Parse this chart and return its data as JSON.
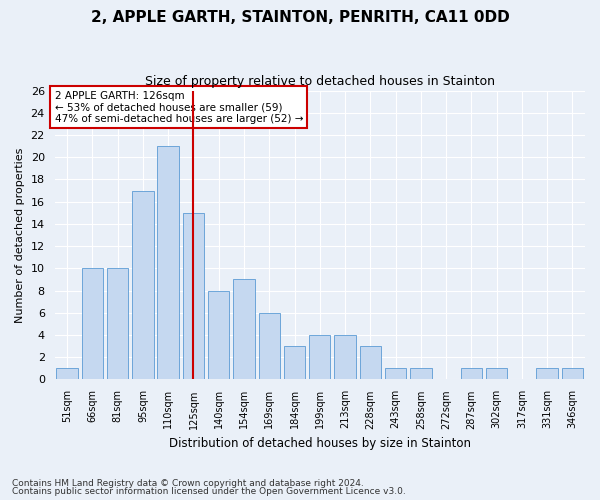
{
  "title1": "2, APPLE GARTH, STAINTON, PENRITH, CA11 0DD",
  "title2": "Size of property relative to detached houses in Stainton",
  "xlabel": "Distribution of detached houses by size in Stainton",
  "ylabel": "Number of detached properties",
  "categories": [
    "51sqm",
    "66sqm",
    "81sqm",
    "95sqm",
    "110sqm",
    "125sqm",
    "140sqm",
    "154sqm",
    "169sqm",
    "184sqm",
    "199sqm",
    "213sqm",
    "228sqm",
    "243sqm",
    "258sqm",
    "272sqm",
    "287sqm",
    "302sqm",
    "317sqm",
    "331sqm",
    "346sqm"
  ],
  "values": [
    1,
    10,
    10,
    17,
    21,
    15,
    8,
    9,
    6,
    3,
    4,
    4,
    3,
    1,
    1,
    0,
    1,
    1,
    0,
    1,
    1
  ],
  "bar_color": "#c5d8f0",
  "bar_edge_color": "#5b9bd5",
  "vline_x": 5,
  "vline_color": "#cc0000",
  "annotation_title": "2 APPLE GARTH: 126sqm",
  "annotation_line2": "← 53% of detached houses are smaller (59)",
  "annotation_line3": "47% of semi-detached houses are larger (52) →",
  "annotation_box_color": "#ffffff",
  "annotation_box_edge": "#cc0000",
  "ylim": [
    0,
    26
  ],
  "yticks": [
    0,
    2,
    4,
    6,
    8,
    10,
    12,
    14,
    16,
    18,
    20,
    22,
    24,
    26
  ],
  "footnote1": "Contains HM Land Registry data © Crown copyright and database right 2024.",
  "footnote2": "Contains public sector information licensed under the Open Government Licence v3.0.",
  "background_color": "#eaf0f8",
  "plot_bg_color": "#eaf0f8",
  "grid_color": "#ffffff"
}
